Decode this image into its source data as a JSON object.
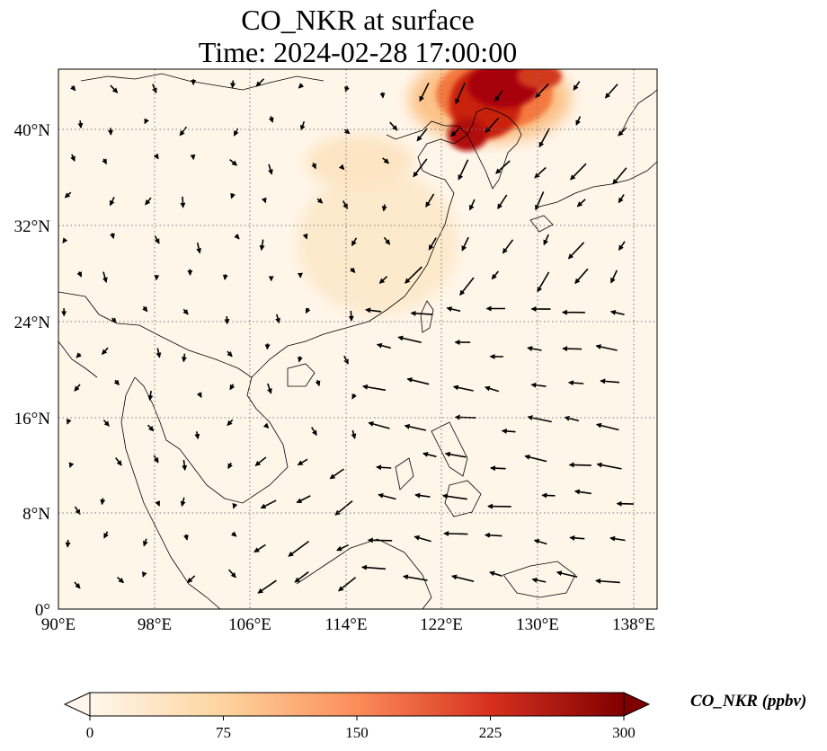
{
  "title": {
    "line1": "CO_NKR at surface",
    "line2": "Time: 2024-02-28 17:00:00"
  },
  "map": {
    "lon_range": [
      90,
      140
    ],
    "lat_range": [
      0,
      45
    ],
    "lon_ticks": [
      "90°E",
      "98°E",
      "106°E",
      "114°E",
      "122°E",
      "130°E",
      "138°E"
    ],
    "lat_ticks": [
      "0°",
      "8°N",
      "16°N",
      "24°N",
      "32°N",
      "40°N"
    ],
    "gridlines": "dotted",
    "field": "CO_NKR",
    "level": "surface",
    "colormap": "OrRd",
    "plume_description_hotspots": [
      {
        "lon": 124,
        "lat": 41.5,
        "value": 290
      },
      {
        "lon": 125.5,
        "lat": 43.5,
        "value": 300
      },
      {
        "lon": 127,
        "lat": 44,
        "value": 260
      },
      {
        "lon": 129,
        "lat": 45,
        "value": 240
      }
    ],
    "wind_vectors": "shown"
  },
  "colorbar": {
    "label": "CO_NKR (ppbv)",
    "ticks": [
      "0",
      "75",
      "150",
      "225",
      "300"
    ],
    "vmin": 0,
    "vmax": 300,
    "extend": "both",
    "colors": [
      "#fff7ec",
      "#fdd49e",
      "#fc8d59",
      "#d7301f",
      "#7f0000"
    ]
  }
}
